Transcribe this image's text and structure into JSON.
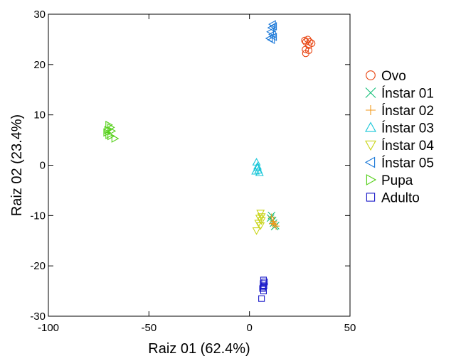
{
  "chart_data": {
    "type": "scatter",
    "xlabel": "Raiz 01 (62.4%)",
    "ylabel": "Raiz 02 (23.4%)",
    "xlim": [
      -100,
      50
    ],
    "ylim": [
      -30,
      30
    ],
    "xticks": [
      -100,
      -50,
      0,
      50
    ],
    "yticks": [
      -30,
      -20,
      -10,
      0,
      10,
      20,
      30
    ],
    "xtick_labels": [
      "-100",
      "-50",
      "0",
      "50"
    ],
    "ytick_labels": [
      "-30",
      "-20",
      "-10",
      "0",
      "10",
      "20",
      "30"
    ],
    "legend_position": "right",
    "grid": false,
    "series": [
      {
        "name": "Ovo",
        "marker": "circle",
        "color": "#e8420e",
        "points": [
          [
            27.5,
            24.8
          ],
          [
            29.0,
            25.0
          ],
          [
            30.0,
            24.5
          ],
          [
            31.0,
            24.2
          ],
          [
            28.0,
            24.5
          ],
          [
            29.5,
            23.8
          ],
          [
            27.8,
            23.0
          ],
          [
            29.5,
            22.8
          ],
          [
            28.0,
            22.2
          ]
        ]
      },
      {
        "name": "Ínstar 01",
        "marker": "x",
        "color": "#16c07a",
        "points": [
          [
            10.5,
            -10.5
          ],
          [
            11.5,
            -11.0
          ],
          [
            12.0,
            -11.5
          ],
          [
            13.0,
            -12.0
          ],
          [
            11.0,
            -10.0
          ],
          [
            12.5,
            -12.2
          ]
        ]
      },
      {
        "name": "Ínstar 02",
        "marker": "plus",
        "color": "#f39a1c",
        "points": [
          [
            11.0,
            -10.3
          ],
          [
            12.0,
            -11.2
          ],
          [
            12.5,
            -11.8
          ],
          [
            13.2,
            -12.1
          ],
          [
            11.5,
            -11.6
          ]
        ]
      },
      {
        "name": "Ínstar 03",
        "marker": "triangle-up",
        "color": "#17c6d8",
        "points": [
          [
            3.5,
            0.6
          ],
          [
            4.0,
            -0.5
          ],
          [
            4.5,
            -1.0
          ],
          [
            3.0,
            -1.2
          ],
          [
            5.0,
            -1.5
          ],
          [
            4.0,
            -0.2
          ]
        ]
      },
      {
        "name": "Ínstar 04",
        "marker": "triangle-down",
        "color": "#c8d416",
        "points": [
          [
            5.5,
            -9.5
          ],
          [
            5.0,
            -10.5
          ],
          [
            6.0,
            -11.0
          ],
          [
            4.5,
            -11.5
          ],
          [
            5.5,
            -12.0
          ],
          [
            3.5,
            -13.0
          ],
          [
            6.0,
            -10.2
          ]
        ]
      },
      {
        "name": "Ínstar 05",
        "marker": "triangle-left",
        "color": "#1a78d8",
        "points": [
          [
            11.5,
            28.0
          ],
          [
            11.0,
            27.3
          ],
          [
            10.5,
            26.5
          ],
          [
            11.5,
            26.0
          ],
          [
            12.0,
            25.5
          ],
          [
            10.0,
            25.2
          ],
          [
            11.0,
            24.9
          ],
          [
            12.0,
            27.6
          ]
        ]
      },
      {
        "name": "Pupa",
        "marker": "triangle-right",
        "color": "#52cf16",
        "points": [
          [
            -70.0,
            8.0
          ],
          [
            -69.0,
            7.5
          ],
          [
            -70.5,
            7.0
          ],
          [
            -71.0,
            6.5
          ],
          [
            -68.5,
            6.8
          ],
          [
            -70.0,
            6.0
          ],
          [
            -69.0,
            5.8
          ],
          [
            -67.0,
            5.3
          ]
        ]
      },
      {
        "name": "Adulto",
        "marker": "square",
        "color": "#1b1bc9",
        "points": [
          [
            7.0,
            -22.8
          ],
          [
            6.8,
            -23.5
          ],
          [
            7.2,
            -24.0
          ],
          [
            6.5,
            -24.5
          ],
          [
            7.0,
            -25.0
          ],
          [
            6.0,
            -26.5
          ],
          [
            7.5,
            -23.2
          ],
          [
            6.8,
            -24.2
          ]
        ]
      }
    ]
  }
}
